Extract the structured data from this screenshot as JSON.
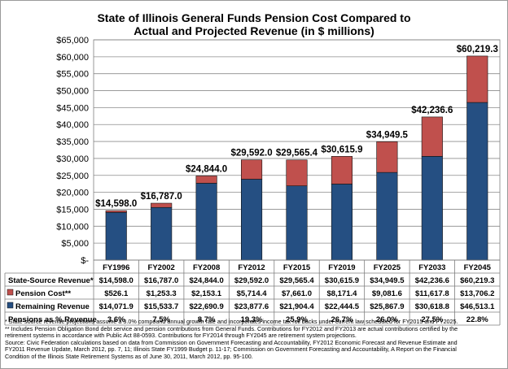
{
  "chart_data": {
    "type": "bar",
    "stacked": true,
    "title": "State of Illinois General Funds Pension Cost Compared to",
    "subtitle": "Actual and Projected Revenue (in $ millions)",
    "categories": [
      "FY1996",
      "FY2002",
      "FY2008",
      "FY2012",
      "FY2015",
      "FY2019",
      "FY2025",
      "FY2033",
      "FY2045"
    ],
    "ylim": [
      0,
      65000
    ],
    "yticks": [
      "$-",
      "$5,000",
      "$10,000",
      "$15,000",
      "$20,000",
      "$25,000",
      "$30,000",
      "$35,000",
      "$40,000",
      "$45,000",
      "$50,000",
      "$55,000",
      "$60,000",
      "$65,000"
    ],
    "grid": true,
    "series": [
      {
        "name": "Remaining Revenue",
        "color": "#254f82",
        "values": [
          14071.9,
          15533.7,
          22690.9,
          23877.6,
          21904.4,
          22444.5,
          25867.9,
          30618.8,
          46513.1
        ]
      },
      {
        "name": "Pension Cost**",
        "color": "#c0504d",
        "values": [
          526.1,
          1253.3,
          2153.1,
          5714.4,
          7661.0,
          8171.4,
          9081.6,
          11617.8,
          13706.2
        ]
      }
    ],
    "totals": [
      14598.0,
      16787.0,
      24844.0,
      29592.0,
      29565.4,
      30615.9,
      34949.5,
      42236.6,
      60219.3
    ],
    "total_labels": [
      "$14,598.0",
      "$16,787.0",
      "$24,844.0",
      "$29,592.0",
      "$29,565.4",
      "$30,615.9",
      "$34,949.5",
      "$42,236.6",
      "$60,219.3"
    ],
    "table": {
      "rows": [
        {
          "label": "State-Source Revenue*",
          "swatch": "",
          "cells": [
            "$14,598.0",
            "$16,787.0",
            "$24,844.0",
            "$29,592.0",
            "$29,565.4",
            "$30,615.9",
            "$34,949.5",
            "$42,236.6",
            "$60,219.3"
          ]
        },
        {
          "label": "Pension Cost**",
          "swatch": "#c0504d",
          "cells": [
            "$526.1",
            "$1,253.3",
            "$2,153.1",
            "$5,714.4",
            "$7,661.0",
            "$8,171.4",
            "$9,081.6",
            "$11,617.8",
            "$13,706.2"
          ]
        },
        {
          "label": "Remaining Revenue",
          "swatch": "#254f82",
          "cells": [
            "$14,071.9",
            "$15,533.7",
            "$22,690.9",
            "$23,877.6",
            "$21,904.4",
            "$22,444.5",
            "$25,867.9",
            "$30,618.8",
            "$46,513.1"
          ]
        },
        {
          "label": "Pensions as % Revenue",
          "swatch": "",
          "cells": [
            "3.6%",
            "7.5%",
            "8.7%",
            "19.3%",
            "25.9%",
            "26.7%",
            "26.0%",
            "27.5%",
            "22.8%"
          ]
        }
      ]
    }
  },
  "notes": [
    "* State-source revenue projections assume a 3.0% compound annual growth rate and incorporates income tax roll backs under current law scheduled for FY2015 and FY2025.",
    "** Includes Pension Obligation Bond debt service and pension contributions from General Funds. Contributions for FY2012 and FY2013 are actual contributions certified by the",
    "retirement systems in accordance with Public Act 88-0593. Contributions for FY2014 through FY2045 are retirement system projections.",
    "Source: Civic Federation calculations based on data from Commission on Government Forecasting and Accountability, FY2012 Economic Forecast and Revenue Estimate and",
    "FY2011 Revenue Update, March 2012, pp. 7, 11; Illinois State FY1999 Budget p. 11-17; Commission on Government Forecasting and Accountability, A Report on the Financial",
    "Condition of the Illinois State Retirement Systems as of June 30, 2011, March 2012, pp. 95-100."
  ]
}
